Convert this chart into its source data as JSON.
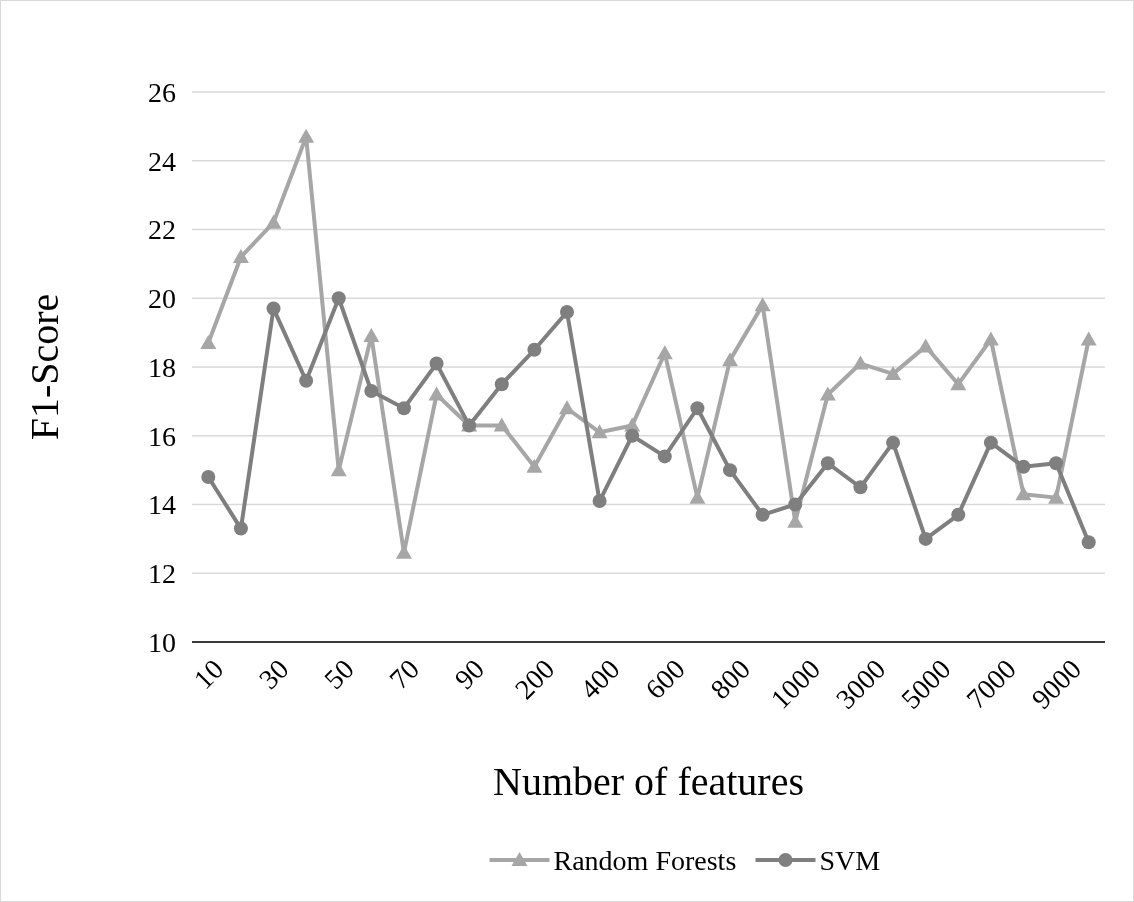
{
  "chart_data": {
    "type": "line",
    "xlabel": "Number of features",
    "ylabel": "F1-Score",
    "categories": [
      "10",
      null,
      "30",
      null,
      "50",
      null,
      "70",
      null,
      "90",
      null,
      "200",
      null,
      "400",
      null,
      "600",
      null,
      "800",
      null,
      "1000",
      null,
      "3000",
      null,
      "5000",
      null,
      "7000",
      null,
      "9000",
      null
    ],
    "series": [
      {
        "name": "Random Forests",
        "color": "#a6a6a6",
        "marker": "triangle",
        "values": [
          18.7,
          21.2,
          22.2,
          24.7,
          15.0,
          18.9,
          12.6,
          17.2,
          16.3,
          16.3,
          15.1,
          16.8,
          16.1,
          16.3,
          18.4,
          14.2,
          18.2,
          19.8,
          13.5,
          17.2,
          18.1,
          17.8,
          18.6,
          17.5,
          18.8,
          14.3,
          14.2,
          18.8
        ]
      },
      {
        "name": "SVM",
        "color": "#7f7f7f",
        "marker": "circle",
        "values": [
          14.8,
          13.3,
          19.7,
          17.6,
          20.0,
          17.3,
          16.8,
          18.1,
          16.3,
          17.5,
          18.5,
          19.6,
          14.1,
          16.0,
          15.4,
          16.8,
          15.0,
          13.7,
          14.0,
          15.2,
          14.5,
          15.8,
          13.0,
          13.7,
          15.8,
          15.1,
          15.2,
          12.9
        ]
      }
    ],
    "ylim": [
      10,
      26
    ],
    "yticks": [
      10,
      12,
      14,
      16,
      18,
      20,
      22,
      24,
      26
    ],
    "grid": "y",
    "legend": "bottom",
    "line_style": "solid"
  }
}
